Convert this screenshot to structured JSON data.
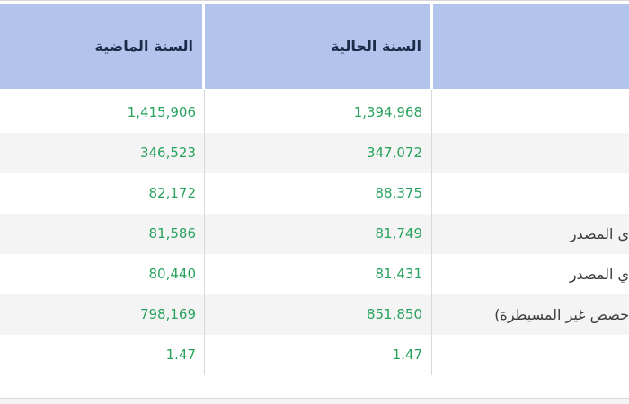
{
  "table": {
    "header": {
      "previous_year": "السنة الماضية",
      "current_year": "السنة الحالية",
      "label_column": ""
    },
    "rows": [
      {
        "label": "",
        "current": "1,394,968",
        "previous": "1,415,906"
      },
      {
        "label": "",
        "current": "347,072",
        "previous": "346,523"
      },
      {
        "label": "",
        "current": "88,375",
        "previous": "82,172"
      },
      {
        "label": "ي المصدر",
        "current": "81,749",
        "previous": "81,586"
      },
      {
        "label": "ي المصدر",
        "current": "81,431",
        "previous": "80,440"
      },
      {
        "label": "حصص غير المسيطرة)",
        "current": "851,850",
        "previous": "798,169"
      },
      {
        "label": "",
        "current": "1.47",
        "previous": "1.47"
      }
    ]
  },
  "colors": {
    "header_bg": "#b2c4ec",
    "header_text": "#1c2b4a",
    "value_text": "#27a35e",
    "label_text": "#3c3c3c",
    "row_alt_bg": "#f4f4f4",
    "divider": "#d9d9d9",
    "top_line": "#d6d6d6",
    "footer_band_bg": "#f4f4f5"
  }
}
